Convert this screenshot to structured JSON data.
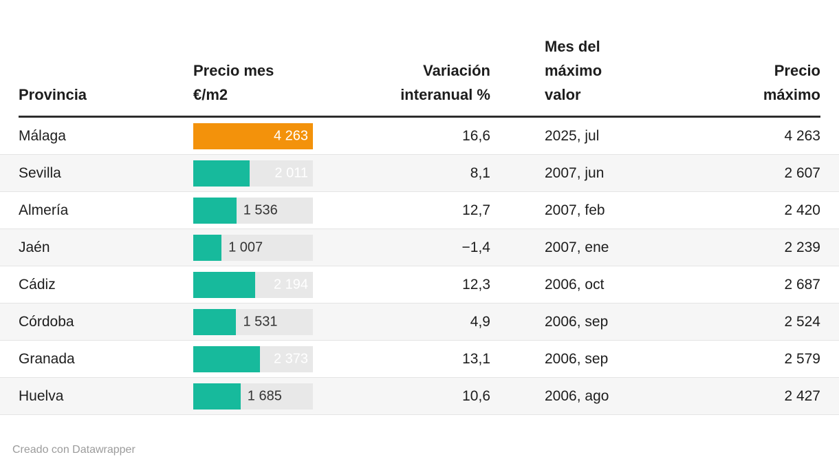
{
  "chart_data": {
    "type": "table",
    "columns": [
      {
        "label": "Provincia",
        "align": "left"
      },
      {
        "label": "Precio mes\n€/m2",
        "align": "left"
      },
      {
        "label": "Variación\ninteranual %",
        "align": "right"
      },
      {
        "label": "Mes del\nmáximo\nvalor",
        "align": "left"
      },
      {
        "label": "Precio\nmáximo",
        "align": "right"
      }
    ],
    "bar_column": "Precio mes €/m2",
    "bar_max": 4263,
    "rows": [
      {
        "provincia": "Málaga",
        "precio_mes": 4263,
        "precio_mes_label": "4 263",
        "bar_color": "#f3920b",
        "variacion_interanual": "16,6",
        "mes_maximo": "2025, jul",
        "precio_maximo": "4 263"
      },
      {
        "provincia": "Sevilla",
        "precio_mes": 2011,
        "precio_mes_label": "2 011",
        "bar_color": "#17ba9c",
        "variacion_interanual": "8,1",
        "mes_maximo": "2007, jun",
        "precio_maximo": "2 607"
      },
      {
        "provincia": "Almería",
        "precio_mes": 1536,
        "precio_mes_label": "1 536",
        "bar_color": "#17ba9c",
        "variacion_interanual": "12,7",
        "mes_maximo": "2007, feb",
        "precio_maximo": "2 420"
      },
      {
        "provincia": "Jaén",
        "precio_mes": 1007,
        "precio_mes_label": "1 007",
        "bar_color": "#17ba9c",
        "variacion_interanual": "−1,4",
        "mes_maximo": "2007, ene",
        "precio_maximo": "2 239"
      },
      {
        "provincia": "Cádiz",
        "precio_mes": 2194,
        "precio_mes_label": "2 194",
        "bar_color": "#17ba9c",
        "variacion_interanual": "12,3",
        "mes_maximo": "2006, oct",
        "precio_maximo": "2 687"
      },
      {
        "provincia": "Córdoba",
        "precio_mes": 1531,
        "precio_mes_label": "1 531",
        "bar_color": "#17ba9c",
        "variacion_interanual": "4,9",
        "mes_maximo": "2006, sep",
        "precio_maximo": "2 524"
      },
      {
        "provincia": "Granada",
        "precio_mes": 2373,
        "precio_mes_label": "2 373",
        "bar_color": "#17ba9c",
        "variacion_interanual": "13,1",
        "mes_maximo": "2006, sep",
        "precio_maximo": "2 579"
      },
      {
        "provincia": "Huelva",
        "precio_mes": 1685,
        "precio_mes_label": "1 685",
        "bar_color": "#17ba9c",
        "variacion_interanual": "10,6",
        "mes_maximo": "2006, ago",
        "precio_maximo": "2 427"
      }
    ]
  },
  "footer": {
    "credit": "Creado con Datawrapper"
  },
  "colors": {
    "bar_highlight": "#f3920b",
    "bar_default": "#17ba9c",
    "bar_track": "#e8e8e8",
    "row_stripe": "#f6f6f6",
    "row_border": "#e4e4e4",
    "header_rule": "#2d2d2d",
    "text": "#1d1d1d",
    "footer_text": "#9b9b9b"
  }
}
